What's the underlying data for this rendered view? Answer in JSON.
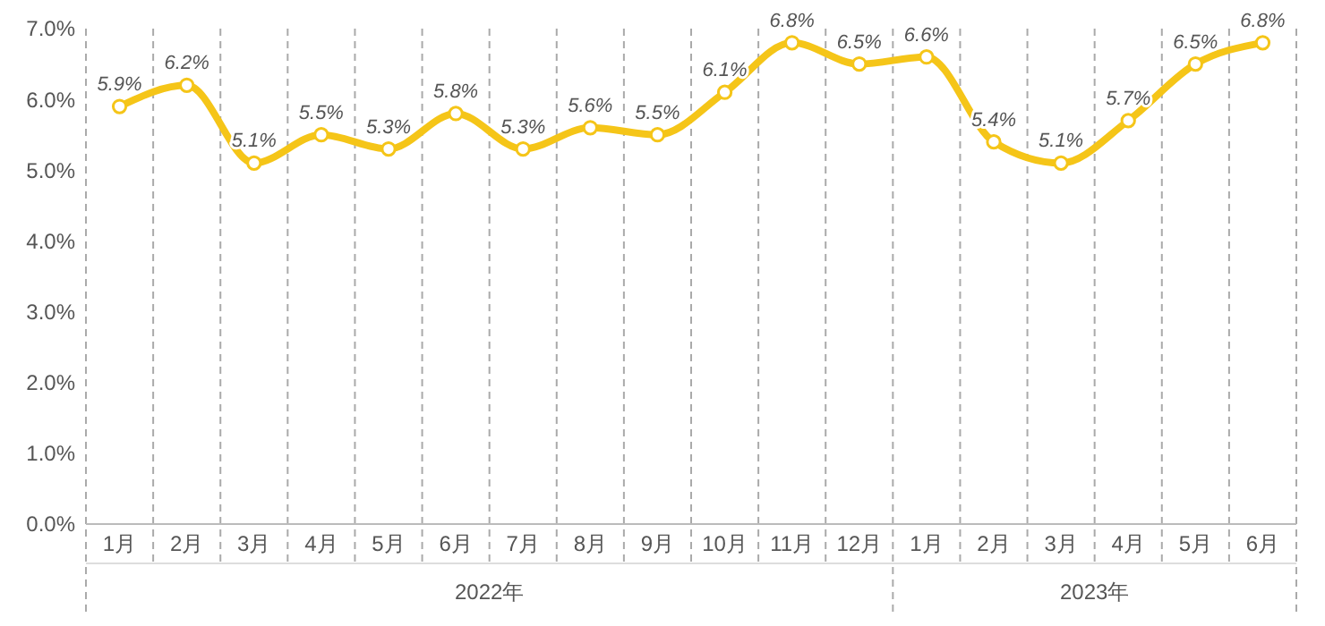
{
  "chart_data": {
    "type": "line",
    "categories": [
      "1月",
      "2月",
      "3月",
      "4月",
      "5月",
      "6月",
      "7月",
      "8月",
      "9月",
      "10月",
      "11月",
      "12月",
      "1月",
      "2月",
      "3月",
      "4月",
      "5月",
      "6月"
    ],
    "series": [
      {
        "color": "#f5c518",
        "values": [
          5.9,
          6.2,
          5.1,
          5.5,
          5.3,
          5.8,
          5.3,
          5.6,
          5.5,
          6.1,
          6.8,
          6.5,
          6.6,
          5.4,
          5.1,
          5.7,
          6.5,
          6.8
        ],
        "value_labels": [
          "5.9%",
          "6.2%",
          "5.1%",
          "5.5%",
          "5.3%",
          "5.8%",
          "5.3%",
          "5.6%",
          "5.5%",
          "6.1%",
          "6.8%",
          "6.5%",
          "6.6%",
          "5.4%",
          "5.1%",
          "5.7%",
          "6.5%",
          "6.8%"
        ]
      }
    ],
    "ylim": [
      0,
      7
    ],
    "yticks": [
      {
        "value": 0,
        "label": "0.0%"
      },
      {
        "value": 1,
        "label": "1.0%"
      },
      {
        "value": 2,
        "label": "2.0%"
      },
      {
        "value": 3,
        "label": "3.0%"
      },
      {
        "value": 4,
        "label": "4.0%"
      },
      {
        "value": 5,
        "label": "5.0%"
      },
      {
        "value": 6,
        "label": "6.0%"
      },
      {
        "value": 7,
        "label": "7.0%"
      }
    ],
    "annotations": [
      "2022年",
      "2023年"
    ],
    "marker": "circle",
    "line_style": "solid",
    "grid": false
  }
}
